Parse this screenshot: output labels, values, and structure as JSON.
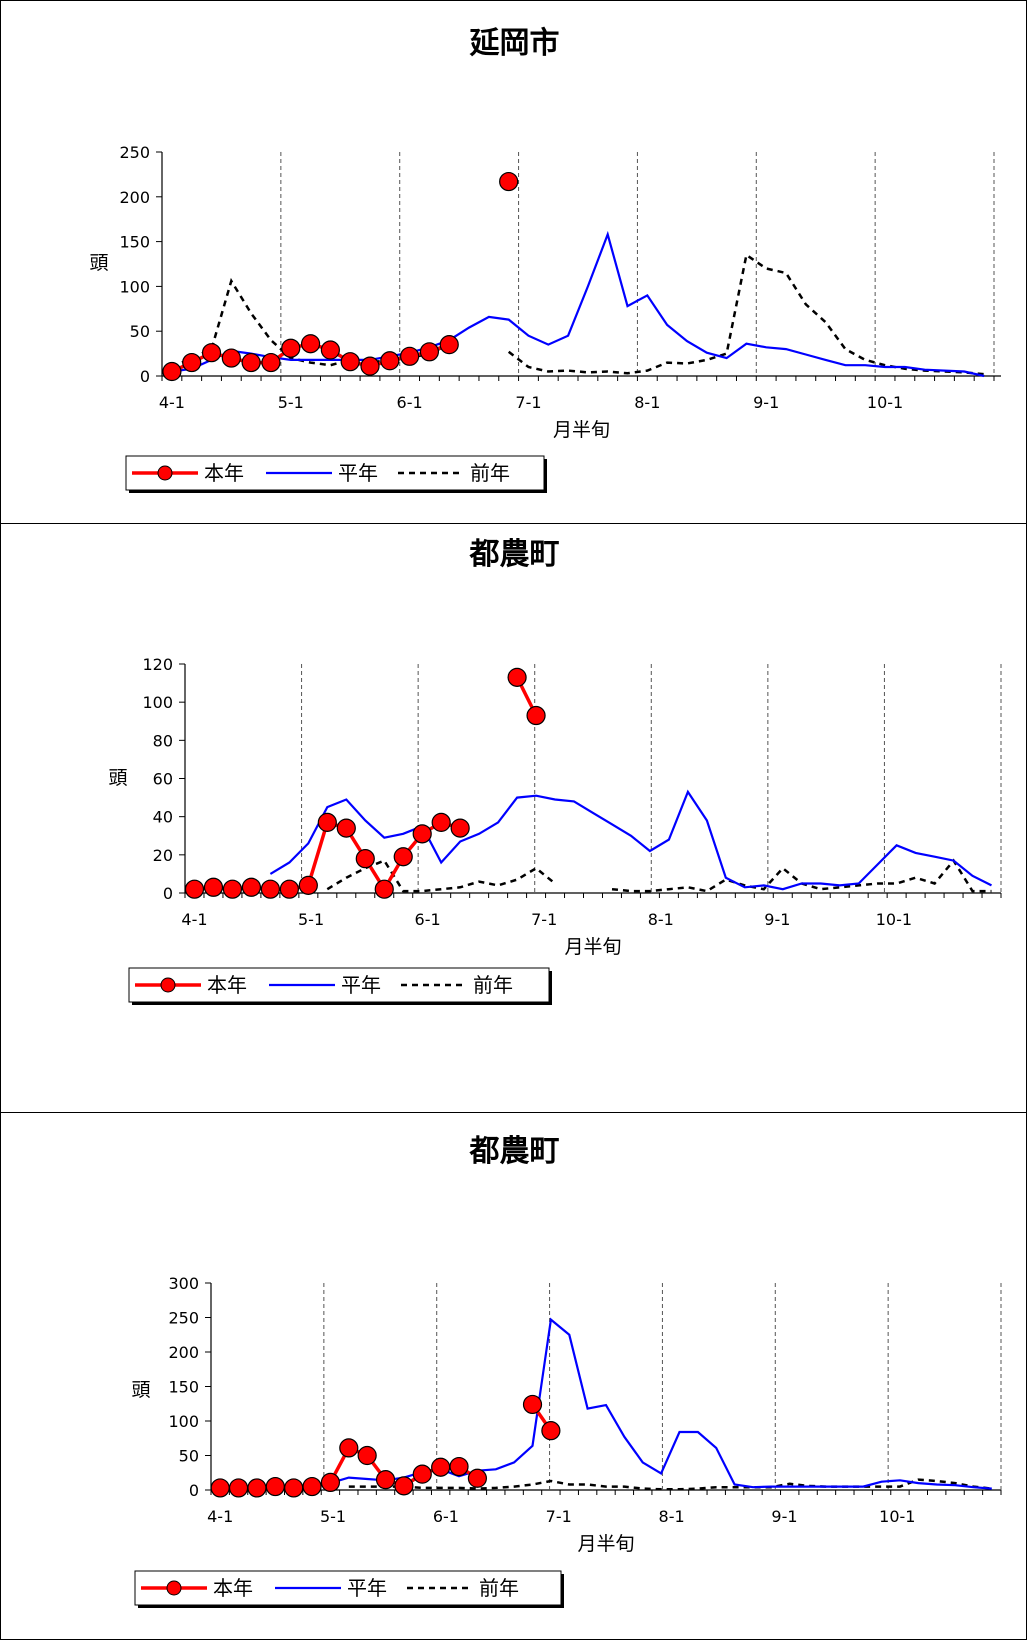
{
  "chart_data": [
    {
      "type": "line",
      "title": "延岡市",
      "xlabel": "月半旬",
      "ylabel": "頭",
      "ylim": [
        0,
        250
      ],
      "yticks": [
        "0",
        "50",
        "100",
        "150",
        "200",
        "250"
      ],
      "xticks": [
        "4-1",
        "5-1",
        "6-1",
        "7-1",
        "8-1",
        "9-1",
        "10-1"
      ],
      "grid": "vertical-dashed-per-month",
      "legend": "bottom-left",
      "series": [
        {
          "name": "本年",
          "color": "#ff0000",
          "style": "marker-line",
          "values": [
            5,
            15,
            26,
            20,
            15,
            15,
            31,
            36,
            29,
            16,
            11,
            17,
            22,
            27,
            35,
            null,
            null,
            217,
            null,
            null,
            null,
            null,
            null,
            null,
            null,
            null,
            null,
            null,
            null,
            null,
            null,
            null,
            null,
            null,
            null,
            null,
            null,
            null,
            null,
            null,
            null,
            null
          ]
        },
        {
          "name": "平年",
          "color": "#0000ff",
          "style": "solid",
          "values": [
            5,
            8,
            18,
            28,
            25,
            21,
            18,
            18,
            18,
            18,
            18,
            22,
            26,
            32,
            40,
            54,
            66,
            63,
            45,
            35,
            45,
            100,
            158,
            78,
            90,
            57,
            39,
            26,
            20,
            36,
            32,
            30,
            24,
            18,
            12,
            12,
            10,
            10,
            7,
            6,
            5,
            0
          ]
        },
        {
          "name": "前年",
          "color": "#000000",
          "style": "dashed",
          "values": [
            10,
            20,
            30,
            106,
            70,
            40,
            20,
            15,
            12,
            18,
            15,
            18,
            20,
            25,
            35,
            null,
            null,
            27,
            10,
            5,
            6,
            4,
            5,
            3,
            6,
            15,
            14,
            18,
            25,
            135,
            120,
            115,
            80,
            60,
            30,
            18,
            12,
            8,
            6,
            5,
            4,
            2
          ]
        }
      ]
    },
    {
      "type": "line",
      "title": "都農町",
      "xlabel": "月半旬",
      "ylabel": "頭",
      "ylim": [
        0,
        120
      ],
      "yticks": [
        "0",
        "20",
        "40",
        "60",
        "80",
        "100",
        "120"
      ],
      "xticks": [
        "4-1",
        "5-1",
        "6-1",
        "7-1",
        "8-1",
        "9-1",
        "10-1"
      ],
      "grid": "vertical-dashed-per-month",
      "legend": "bottom-left",
      "series": [
        {
          "name": "本年",
          "color": "#ff0000",
          "style": "marker-line",
          "values": [
            2,
            3,
            2,
            3,
            2,
            2,
            4,
            37,
            34,
            18,
            2,
            19,
            31,
            37,
            34,
            null,
            null,
            113,
            93,
            null,
            null,
            null,
            null,
            null,
            null,
            null,
            null,
            null,
            null,
            null,
            null,
            null,
            null,
            null,
            null,
            null,
            null,
            null,
            null,
            null,
            null,
            null,
            null
          ]
        },
        {
          "name": "平年",
          "color": "#0000ff",
          "style": "solid",
          "values": [
            null,
            null,
            null,
            null,
            10,
            16,
            26,
            45,
            49,
            38,
            29,
            31,
            35,
            16,
            27,
            31,
            37,
            50,
            51,
            49,
            48,
            42,
            36,
            30,
            22,
            28,
            53,
            38,
            8,
            3,
            4,
            2,
            5,
            5,
            4,
            5,
            15,
            25,
            21,
            19,
            17,
            9,
            4
          ]
        },
        {
          "name": "前年",
          "color": "#000000",
          "style": "dashed",
          "values": [
            null,
            null,
            null,
            null,
            null,
            null,
            null,
            2,
            8,
            13,
            17,
            1,
            1,
            2,
            3,
            6,
            4,
            7,
            13,
            5,
            null,
            null,
            2,
            1,
            1,
            2,
            3,
            1,
            7,
            4,
            2,
            13,
            5,
            2,
            3,
            4,
            5,
            5,
            8,
            5,
            17,
            1,
            1
          ]
        }
      ]
    },
    {
      "type": "line",
      "title": "都農町",
      "xlabel": "月半旬",
      "ylabel": "頭",
      "ylim": [
        0,
        300
      ],
      "yticks": [
        "0",
        "50",
        "100",
        "150",
        "200",
        "250",
        "300"
      ],
      "xticks": [
        "4-1",
        "5-1",
        "6-1",
        "7-1",
        "8-1",
        "9-1",
        "10-1"
      ],
      "grid": "vertical-dashed-per-month",
      "legend": "bottom-left",
      "series": [
        {
          "name": "本年",
          "color": "#ff0000",
          "style": "marker-line",
          "values": [
            3,
            3,
            3,
            5,
            3,
            5,
            11,
            61,
            50,
            15,
            6,
            23,
            33,
            34,
            17,
            null,
            null,
            124,
            86,
            null,
            null,
            null,
            null,
            null,
            null,
            null,
            null,
            null,
            null,
            null,
            null,
            null,
            null,
            null,
            null,
            null,
            null,
            null,
            null,
            null,
            null,
            null,
            null
          ]
        },
        {
          "name": "平年",
          "color": "#0000ff",
          "style": "solid",
          "values": [
            null,
            null,
            null,
            null,
            null,
            5,
            10,
            18,
            16,
            14,
            18,
            26,
            30,
            20,
            28,
            30,
            40,
            64,
            247,
            225,
            118,
            123,
            77,
            40,
            24,
            84,
            84,
            61,
            8,
            4,
            5,
            5,
            5,
            5,
            5,
            5,
            12,
            14,
            10,
            8,
            7,
            4,
            2
          ]
        },
        {
          "name": "前年",
          "color": "#000000",
          "style": "dashed",
          "values": [
            null,
            null,
            null,
            null,
            null,
            null,
            null,
            5,
            5,
            5,
            5,
            3,
            3,
            3,
            2,
            3,
            5,
            8,
            13,
            8,
            8,
            5,
            5,
            2,
            1,
            1,
            2,
            4,
            4,
            4,
            4,
            9,
            6,
            5,
            5,
            5,
            5,
            5,
            15,
            13,
            10,
            5,
            2
          ]
        }
      ]
    }
  ]
}
